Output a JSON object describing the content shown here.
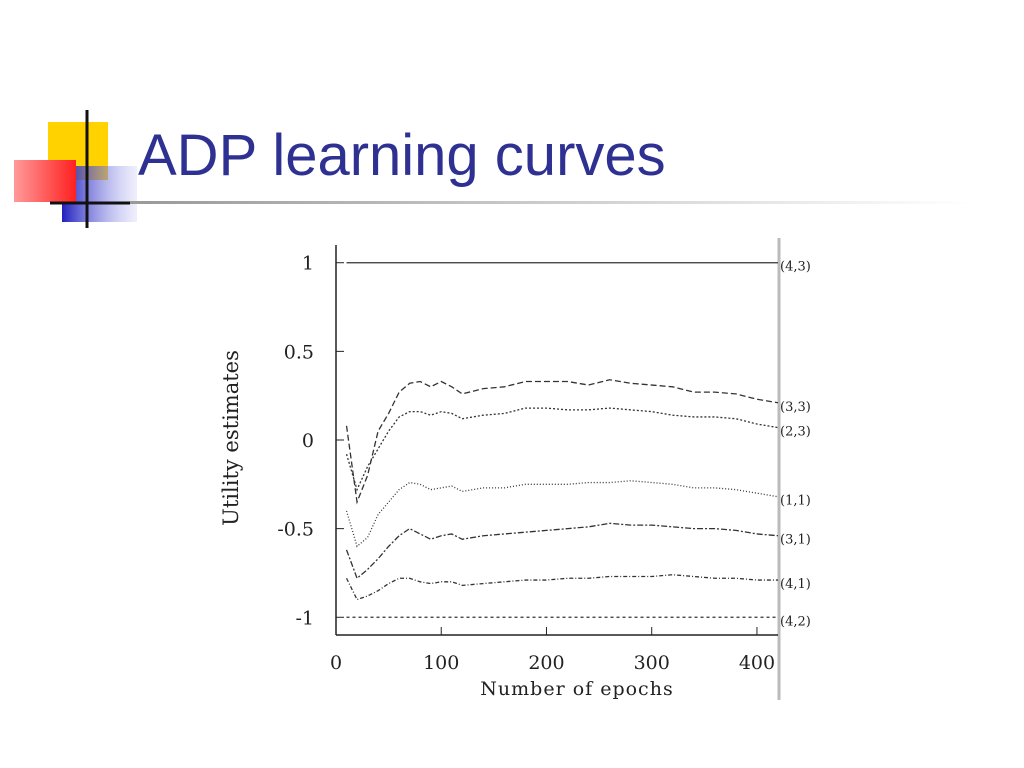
{
  "title": "ADP learning curves",
  "chart_data": {
    "type": "line",
    "xlabel": "Number of epochs",
    "ylabel": "Utility estimates",
    "x": [
      10,
      20,
      30,
      40,
      50,
      60,
      70,
      80,
      90,
      100,
      110,
      120,
      140,
      160,
      180,
      200,
      220,
      240,
      260,
      280,
      300,
      320,
      340,
      360,
      380,
      400,
      420
    ],
    "series": [
      {
        "name": "(4,3)",
        "color": "#333333",
        "dash": "none",
        "values": [
          1,
          1,
          1,
          1,
          1,
          1,
          1,
          1,
          1,
          1,
          1,
          1,
          1,
          1,
          1,
          1,
          1,
          1,
          1,
          1,
          1,
          1,
          1,
          1,
          1,
          1,
          1
        ]
      },
      {
        "name": "(3,3)",
        "color": "#333333",
        "dash": "6 3",
        "values": [
          0.08,
          -0.35,
          -0.2,
          0.05,
          0.15,
          0.27,
          0.32,
          0.33,
          0.3,
          0.33,
          0.3,
          0.26,
          0.29,
          0.3,
          0.33,
          0.33,
          0.33,
          0.31,
          0.34,
          0.32,
          0.31,
          0.3,
          0.27,
          0.27,
          0.26,
          0.23,
          0.21
        ]
      },
      {
        "name": "(2,3)",
        "color": "#333333",
        "dash": "2 2",
        "values": [
          -0.08,
          -0.28,
          -0.15,
          -0.05,
          0.05,
          0.13,
          0.16,
          0.16,
          0.14,
          0.16,
          0.15,
          0.12,
          0.14,
          0.15,
          0.18,
          0.18,
          0.17,
          0.17,
          0.18,
          0.17,
          0.16,
          0.14,
          0.13,
          0.13,
          0.12,
          0.09,
          0.07
        ]
      },
      {
        "name": "(1,1)",
        "color": "#333333",
        "dash": "1 2",
        "values": [
          -0.4,
          -0.6,
          -0.55,
          -0.42,
          -0.35,
          -0.28,
          -0.24,
          -0.25,
          -0.28,
          -0.27,
          -0.26,
          -0.29,
          -0.27,
          -0.27,
          -0.25,
          -0.25,
          -0.25,
          -0.24,
          -0.24,
          -0.23,
          -0.24,
          -0.25,
          -0.27,
          -0.27,
          -0.28,
          -0.3,
          -0.32
        ]
      },
      {
        "name": "(3,1)",
        "color": "#333333",
        "dash": "6 2 2 2",
        "values": [
          -0.62,
          -0.78,
          -0.73,
          -0.67,
          -0.6,
          -0.54,
          -0.5,
          -0.53,
          -0.56,
          -0.54,
          -0.53,
          -0.56,
          -0.54,
          -0.53,
          -0.52,
          -0.51,
          -0.5,
          -0.49,
          -0.47,
          -0.48,
          -0.48,
          -0.49,
          -0.5,
          -0.5,
          -0.51,
          -0.53,
          -0.54
        ]
      },
      {
        "name": "(4,1)",
        "color": "#333333",
        "dash": "4 2 1 2",
        "values": [
          -0.78,
          -0.9,
          -0.88,
          -0.85,
          -0.81,
          -0.78,
          -0.78,
          -0.8,
          -0.81,
          -0.8,
          -0.8,
          -0.82,
          -0.81,
          -0.8,
          -0.79,
          -0.79,
          -0.78,
          -0.78,
          -0.77,
          -0.77,
          -0.77,
          -0.76,
          -0.77,
          -0.78,
          -0.78,
          -0.79,
          -0.79
        ]
      },
      {
        "name": "(4,2)",
        "color": "#333333",
        "dash": "3 3",
        "values": [
          -1,
          -1,
          -1,
          -1,
          -1,
          -1,
          -1,
          -1,
          -1,
          -1,
          -1,
          -1,
          -1,
          -1,
          -1,
          -1,
          -1,
          -1,
          -1,
          -1,
          -1,
          -1,
          -1,
          -1,
          -1,
          -1,
          -1
        ]
      }
    ],
    "xlim": [
      0,
      420
    ],
    "ylim": [
      -1.1,
      1.1
    ],
    "xticks": [
      0,
      100,
      200,
      300,
      400
    ],
    "yticks": [
      -1,
      -0.5,
      0,
      0.5,
      1
    ]
  }
}
